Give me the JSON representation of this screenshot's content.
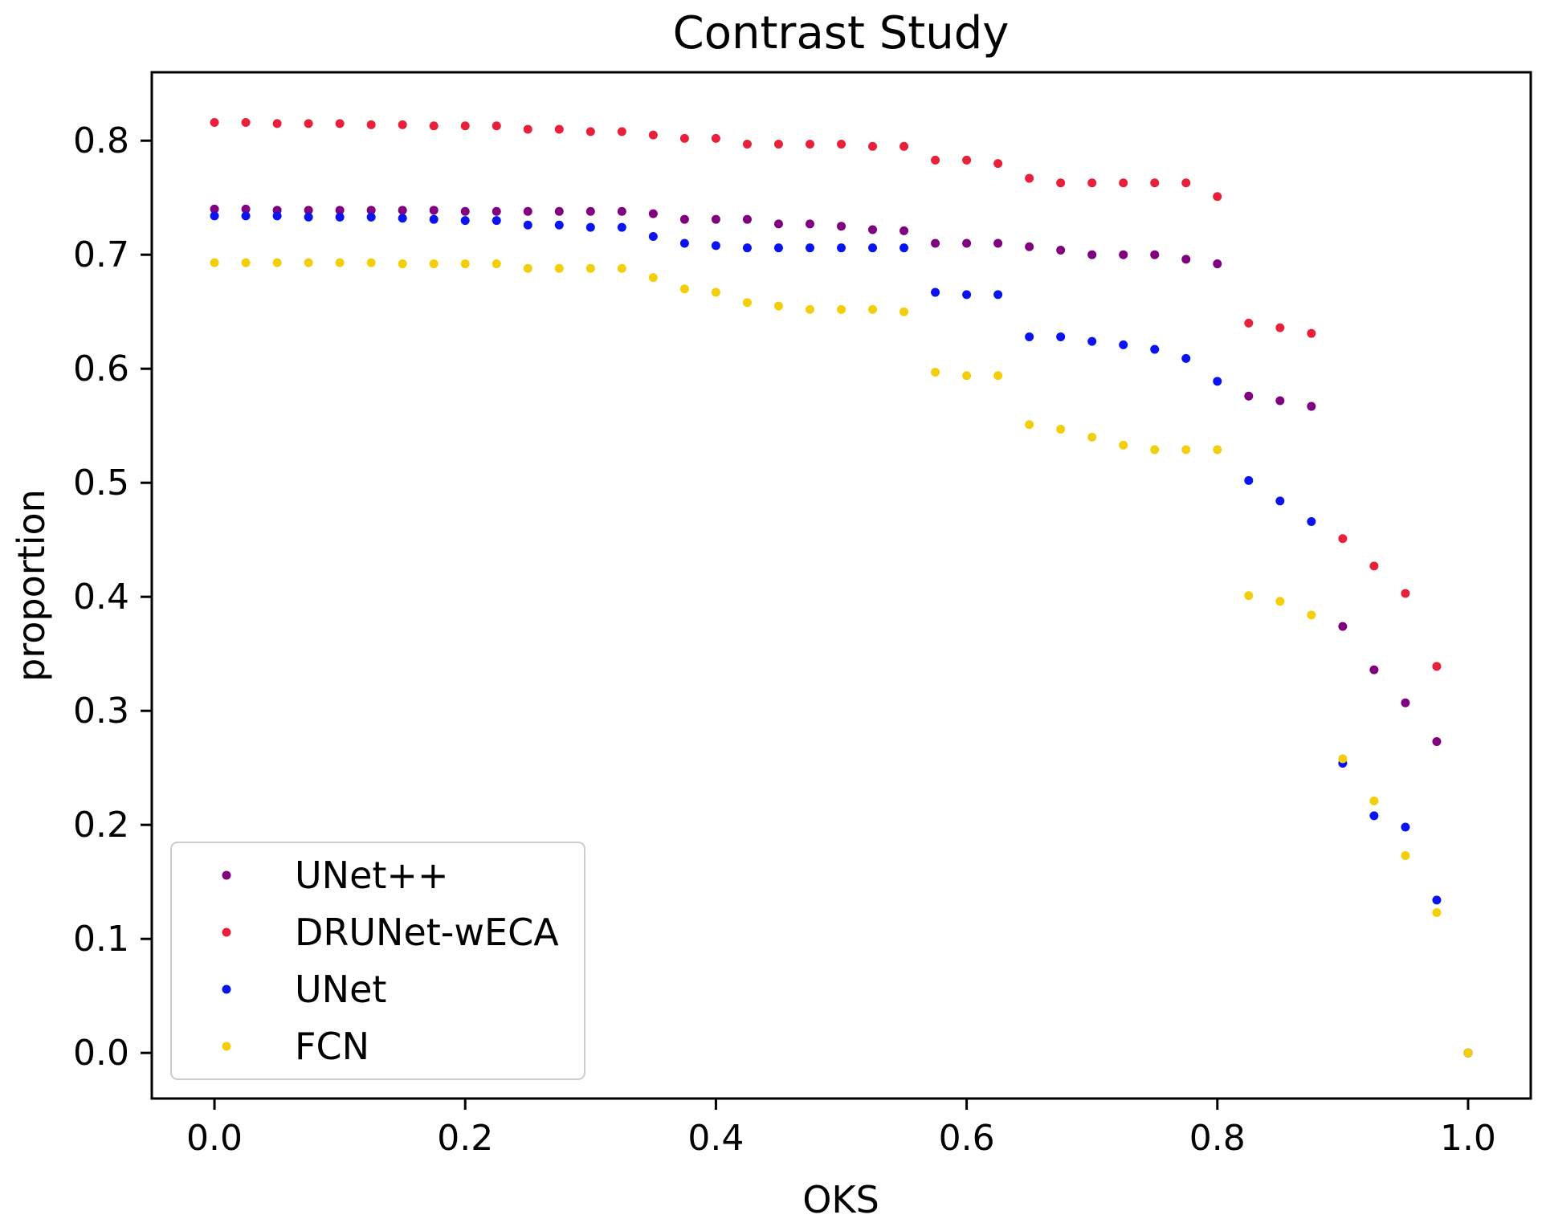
{
  "chart_data": {
    "type": "scatter",
    "title": "Contrast Study",
    "xlabel": "OKS",
    "ylabel": "proportion",
    "xlim": [
      -0.05,
      1.05
    ],
    "ylim": [
      -0.04,
      0.86
    ],
    "xticks": [
      "0.0",
      "0.2",
      "0.4",
      "0.6",
      "0.8",
      "1.0"
    ],
    "xtick_values": [
      0.0,
      0.2,
      0.4,
      0.6,
      0.8,
      1.0
    ],
    "yticks": [
      "0.0",
      "0.1",
      "0.2",
      "0.3",
      "0.4",
      "0.5",
      "0.6",
      "0.7",
      "0.8"
    ],
    "ytick_values": [
      0.0,
      0.1,
      0.2,
      0.3,
      0.4,
      0.5,
      0.6,
      0.7,
      0.8
    ],
    "grid": false,
    "legend_position": "lower-left",
    "x": [
      0.0,
      0.025,
      0.05,
      0.075,
      0.1,
      0.125,
      0.15,
      0.175,
      0.2,
      0.225,
      0.25,
      0.275,
      0.3,
      0.325,
      0.35,
      0.375,
      0.4,
      0.425,
      0.45,
      0.475,
      0.5,
      0.525,
      0.55,
      0.575,
      0.6,
      0.625,
      0.65,
      0.675,
      0.7,
      0.725,
      0.75,
      0.775,
      0.8,
      0.825,
      0.85,
      0.875,
      0.9,
      0.925,
      0.95,
      0.975,
      1.0
    ],
    "series": [
      {
        "name": "UNet++",
        "color": "#800080",
        "values": [
          0.74,
          0.74,
          0.739,
          0.739,
          0.739,
          0.739,
          0.739,
          0.739,
          0.738,
          0.738,
          0.738,
          0.738,
          0.738,
          0.738,
          0.736,
          0.731,
          0.731,
          0.731,
          0.727,
          0.727,
          0.725,
          0.722,
          0.721,
          0.71,
          0.71,
          0.71,
          0.707,
          0.704,
          0.7,
          0.7,
          0.7,
          0.696,
          0.692,
          0.576,
          0.572,
          0.567,
          0.374,
          0.336,
          0.307,
          0.273,
          0.0
        ]
      },
      {
        "name": "DRUNet-wECA",
        "color": "#e8203a",
        "values": [
          0.816,
          0.816,
          0.815,
          0.815,
          0.815,
          0.814,
          0.814,
          0.813,
          0.813,
          0.813,
          0.81,
          0.81,
          0.808,
          0.808,
          0.805,
          0.802,
          0.802,
          0.797,
          0.797,
          0.797,
          0.797,
          0.795,
          0.795,
          0.783,
          0.783,
          0.78,
          0.767,
          0.763,
          0.763,
          0.763,
          0.763,
          0.763,
          0.751,
          0.64,
          0.636,
          0.631,
          0.451,
          0.427,
          0.403,
          0.339,
          0.0
        ]
      },
      {
        "name": "UNet",
        "color": "#0a14f0",
        "values": [
          0.734,
          0.734,
          0.734,
          0.733,
          0.733,
          0.733,
          0.732,
          0.731,
          0.73,
          0.73,
          0.726,
          0.726,
          0.724,
          0.724,
          0.716,
          0.71,
          0.708,
          0.706,
          0.706,
          0.706,
          0.706,
          0.706,
          0.706,
          0.667,
          0.665,
          0.665,
          0.628,
          0.628,
          0.624,
          0.621,
          0.617,
          0.609,
          0.589,
          0.502,
          0.484,
          0.466,
          0.254,
          0.208,
          0.198,
          0.134,
          0.0
        ]
      },
      {
        "name": "FCN",
        "color": "#f2cf0a",
        "values": [
          0.693,
          0.693,
          0.693,
          0.693,
          0.693,
          0.693,
          0.692,
          0.692,
          0.692,
          0.692,
          0.688,
          0.688,
          0.688,
          0.688,
          0.68,
          0.67,
          0.667,
          0.658,
          0.655,
          0.652,
          0.652,
          0.652,
          0.65,
          0.597,
          0.594,
          0.594,
          0.551,
          0.547,
          0.54,
          0.533,
          0.529,
          0.529,
          0.529,
          0.401,
          0.396,
          0.384,
          0.258,
          0.221,
          0.173,
          0.123,
          0.0
        ]
      }
    ]
  }
}
